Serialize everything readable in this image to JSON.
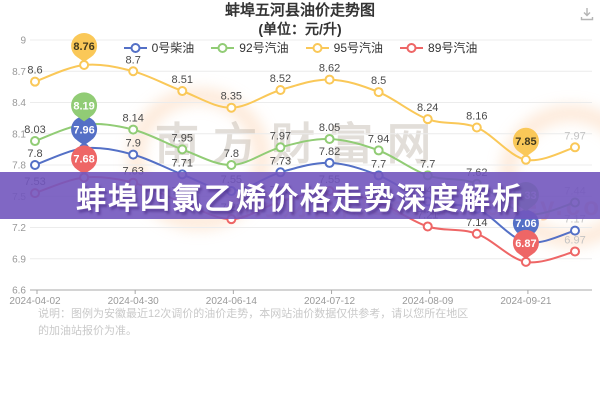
{
  "header": {
    "title": "蚌埠五河县油价走势图",
    "subtitle": "(单位：元/升)"
  },
  "toolbar": {
    "download_icon": "download"
  },
  "legend": [
    {
      "label": "0号柴油",
      "color": "#5470c6"
    },
    {
      "label": "92号汽油",
      "color": "#91cc75"
    },
    {
      "label": "95号汽油",
      "color": "#fac858"
    },
    {
      "label": "89号汽油",
      "color": "#ee6666"
    }
  ],
  "banner": {
    "text": "蚌埠四氯乙烯价格走势深度解析",
    "bg": "#7256be"
  },
  "watermark": {
    "text": "南方财富网",
    "sub_text": "南方财富网Southmoney.com"
  },
  "note": "说明：图例为安徽最近12次调价的油价走势，本网站油价数据仅供参考，请以您所在地区的加油站报价为准。",
  "chart_data": {
    "type": "line",
    "title": "蚌埠五河县油价走势图",
    "ylabel": "元/升",
    "smooth": true,
    "grid": true,
    "legend_position": "top",
    "ylim": [
      6.6,
      9
    ],
    "y_ticks": [
      "9",
      "8.7",
      "8.4",
      "8.1",
      "7.8",
      "7.5",
      "7.2",
      "6.9",
      "6.6"
    ],
    "x_tick_labels": [
      "2024-04-02",
      "2024-04-30",
      "2024-06-14",
      "2024-07-12",
      "2024-08-09",
      "2024-09-21"
    ],
    "x_label_point_indices": [
      0,
      2,
      4,
      6,
      8,
      10
    ],
    "series": [
      {
        "name": "0号柴油",
        "color": "#5470c6",
        "pin_text_color": "#ffffff",
        "values": [
          7.8,
          7.96,
          7.9,
          7.71,
          7.55,
          7.73,
          7.82,
          7.7,
          7.45,
          7.38,
          7.06,
          7.17
        ],
        "max_pin": {
          "index": 1,
          "value": "7.96"
        },
        "min_pin": {
          "index": 10,
          "value": "7.06"
        }
      },
      {
        "name": "92号汽油",
        "color": "#91cc75",
        "pin_text_color": "#ffffff",
        "values": [
          8.03,
          8.19,
          8.14,
          7.95,
          7.8,
          7.97,
          8.05,
          7.94,
          7.7,
          7.62,
          7.33,
          7.44
        ],
        "max_pin": {
          "index": 1,
          "value": "8.19"
        },
        "min_pin": {
          "index": 10,
          "value": "7.33"
        }
      },
      {
        "name": "95号汽油",
        "color": "#fac858",
        "pin_text_color": "#433a1e",
        "values": [
          8.6,
          8.76,
          8.7,
          8.51,
          8.35,
          8.52,
          8.62,
          8.5,
          8.24,
          8.16,
          7.85,
          7.97
        ],
        "max_pin": {
          "index": 1,
          "value": "8.76"
        },
        "min_pin": {
          "index": 10,
          "value": "7.85"
        }
      },
      {
        "name": "89号汽油",
        "color": "#ee6666",
        "pin_text_color": "#ffffff",
        "values": [
          7.53,
          7.68,
          7.63,
          7.44,
          7.28,
          7.45,
          7.55,
          7.44,
          7.21,
          7.14,
          6.87,
          6.97
        ],
        "max_pin": {
          "index": 1,
          "value": "7.68"
        },
        "min_pin": {
          "index": 10,
          "value": "6.87"
        }
      }
    ],
    "label_color": "#4a4a4a",
    "last_label_color": "#c3c3c3",
    "axis_color": "#a8a8a8",
    "grid_color": "#ececec",
    "tick_label_color": "#999999"
  }
}
